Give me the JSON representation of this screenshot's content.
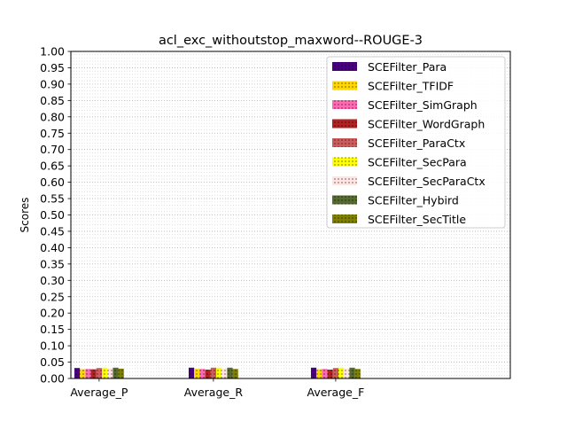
{
  "chart_data": {
    "type": "bar",
    "title": "acl_exc_withoutstop_maxword--ROUGE-3",
    "xlabel": "",
    "ylabel": "Scores",
    "ylim": [
      0,
      1.0
    ],
    "yticks": [
      "0.00",
      "0.05",
      "0.10",
      "0.15",
      "0.20",
      "0.25",
      "0.30",
      "0.35",
      "0.40",
      "0.45",
      "0.50",
      "0.55",
      "0.60",
      "0.65",
      "0.70",
      "0.75",
      "0.80",
      "0.85",
      "0.90",
      "0.95",
      "1.00"
    ],
    "grid": true,
    "legend_position": "top-right",
    "categories": [
      "Average_P",
      "Average_R",
      "Average_F"
    ],
    "series": [
      {
        "name": "SCEFilter_Para",
        "color": "#4b0082",
        "values": [
          0.032,
          0.033,
          0.033
        ]
      },
      {
        "name": "SCEFilter_TFIDF",
        "color": "#ffd700",
        "values": [
          0.028,
          0.029,
          0.028
        ]
      },
      {
        "name": "SCEFilter_SimGraph",
        "color": "#ff69b4",
        "values": [
          0.029,
          0.029,
          0.029
        ]
      },
      {
        "name": "SCEFilter_WordGraph",
        "color": "#b22222",
        "values": [
          0.028,
          0.027,
          0.027
        ]
      },
      {
        "name": "SCEFilter_ParaCtx",
        "color": "#cd5c5c",
        "values": [
          0.032,
          0.033,
          0.032
        ]
      },
      {
        "name": "SCEFilter_SecPara",
        "color": "#ffff00",
        "values": [
          0.033,
          0.033,
          0.033
        ]
      },
      {
        "name": "SCEFilter_SecParaCtx",
        "color": "#ffe4e1",
        "values": [
          0.03,
          0.029,
          0.03
        ]
      },
      {
        "name": "SCEFilter_Hybird",
        "color": "#556b2f",
        "values": [
          0.033,
          0.033,
          0.033
        ]
      },
      {
        "name": "SCEFilter_SecTitle",
        "color": "#808000",
        "values": [
          0.03,
          0.029,
          0.029
        ]
      }
    ]
  }
}
